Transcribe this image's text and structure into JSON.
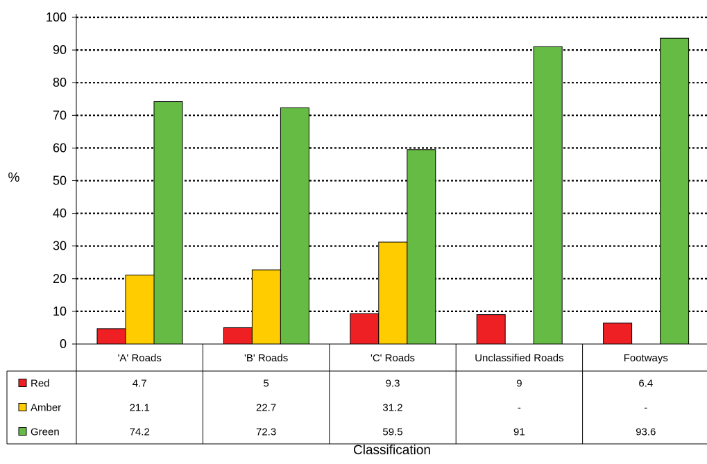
{
  "chart_data": {
    "type": "bar",
    "xlabel": "Classification",
    "ylabel": "%",
    "ylim": [
      0,
      100
    ],
    "yticks": [
      "0",
      "10",
      "20",
      "30",
      "40",
      "50",
      "60",
      "70",
      "80",
      "90",
      "100"
    ],
    "grid": "horizontal dotted",
    "categories": [
      "'A' Roads",
      "'B' Roads",
      "'C' Roads",
      "Unclassified Roads",
      "Footways"
    ],
    "series": [
      {
        "name": "Red",
        "color": "#ee2024",
        "values": [
          4.7,
          5,
          9.3,
          9,
          6.4
        ],
        "labels": [
          "4.7",
          "5",
          "9.3",
          "9",
          "6.4"
        ]
      },
      {
        "name": "Amber",
        "color": "#ffcc00",
        "values": [
          21.1,
          22.7,
          31.2,
          null,
          null
        ],
        "labels": [
          "21.1",
          "22.7",
          "31.2",
          "-",
          "-"
        ]
      },
      {
        "name": "Green",
        "color": "#66bb44",
        "values": [
          74.2,
          72.3,
          59.5,
          91,
          93.6
        ],
        "labels": [
          "74.2",
          "72.3",
          "59.5",
          "91",
          "93.6"
        ]
      }
    ],
    "legend": "data-table-left"
  }
}
